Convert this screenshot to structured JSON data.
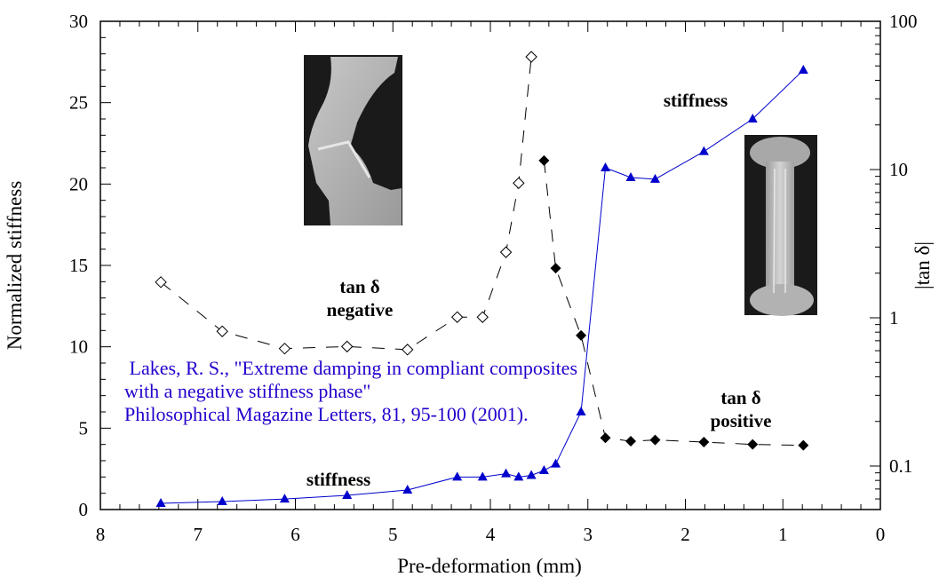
{
  "chart_data": {
    "type": "line",
    "title": "",
    "xlabel": "Pre-deformation (mm)",
    "ylabel": "Normalized stiffness",
    "y2label": "|tan δ|",
    "xlim": [
      8,
      0
    ],
    "ylim": [
      0,
      30
    ],
    "y2lim": [
      0.055,
      100
    ],
    "y2scale": "log",
    "x_ticks": [
      8,
      7,
      6,
      5,
      4,
      3,
      2,
      1,
      0
    ],
    "y_ticks": [
      0,
      5,
      10,
      15,
      20,
      25,
      30
    ],
    "y2_ticks": [
      "0.1",
      "1",
      "10",
      "100"
    ],
    "grid": false,
    "series": [
      {
        "name": "stiffness",
        "axis": "left",
        "color": "#0000cc",
        "marker": "filled-triangle",
        "line": "solid",
        "x": [
          7.38,
          6.75,
          6.11,
          5.47,
          4.85,
          4.34,
          4.08,
          3.84,
          3.71,
          3.58,
          3.45,
          3.33,
          3.07,
          2.82,
          2.56,
          2.31,
          1.81,
          1.31,
          0.79
        ],
        "y": [
          0.38,
          0.49,
          0.65,
          0.87,
          1.2,
          2.0,
          2.0,
          2.2,
          2.0,
          2.1,
          2.4,
          2.8,
          6.0,
          21.0,
          20.4,
          20.3,
          22.0,
          24.0,
          27.0
        ]
      },
      {
        "name": "tan δ negative",
        "axis": "right",
        "color": "#000000",
        "marker": "open-diamond",
        "line": "dashed",
        "x": [
          7.38,
          6.75,
          6.11,
          5.47,
          4.85,
          4.34,
          4.08,
          3.84,
          3.71,
          3.58
        ],
        "y": [
          1.74,
          0.81,
          0.62,
          0.64,
          0.61,
          1.01,
          1.01,
          2.77,
          8.1,
          57.6
        ]
      },
      {
        "name": "tan δ positive",
        "axis": "right",
        "color": "#000000",
        "marker": "filled-diamond",
        "line": "dashed",
        "x": [
          3.45,
          3.33,
          3.07,
          2.82,
          2.56,
          2.31,
          1.81,
          1.31,
          0.79
        ],
        "y": [
          11.5,
          2.16,
          0.76,
          0.155,
          0.147,
          0.15,
          0.145,
          0.14,
          0.138
        ]
      }
    ],
    "annotations": [
      {
        "text": "stiffness",
        "at_x": 6.0,
        "at_y": 2.0
      },
      {
        "text": "stiffness",
        "at_x": 1.75,
        "at_y": 25.0
      },
      {
        "text": "tan δ",
        "at_x": 5.55,
        "at_y": 13.5
      },
      {
        "text": "negative",
        "at_x": 5.55,
        "at_y": 12.0
      },
      {
        "text": "tan δ",
        "at_x": 1.35,
        "at_y": 6.8
      },
      {
        "text": "positive",
        "at_x": 1.35,
        "at_y": 5.4
      }
    ],
    "citation": [
      " Lakes, R. S., \"Extreme damping in compliant composites",
      "with a negative stiffness phase\"",
      "Philosophical Magazine Letters, 81, 95-100 (2001)."
    ],
    "images": [
      {
        "name": "buckled-specimen-photo",
        "description": "bent specimen (negative stiffness)"
      },
      {
        "name": "straight-specimen-photo",
        "description": "straight specimen"
      }
    ]
  }
}
